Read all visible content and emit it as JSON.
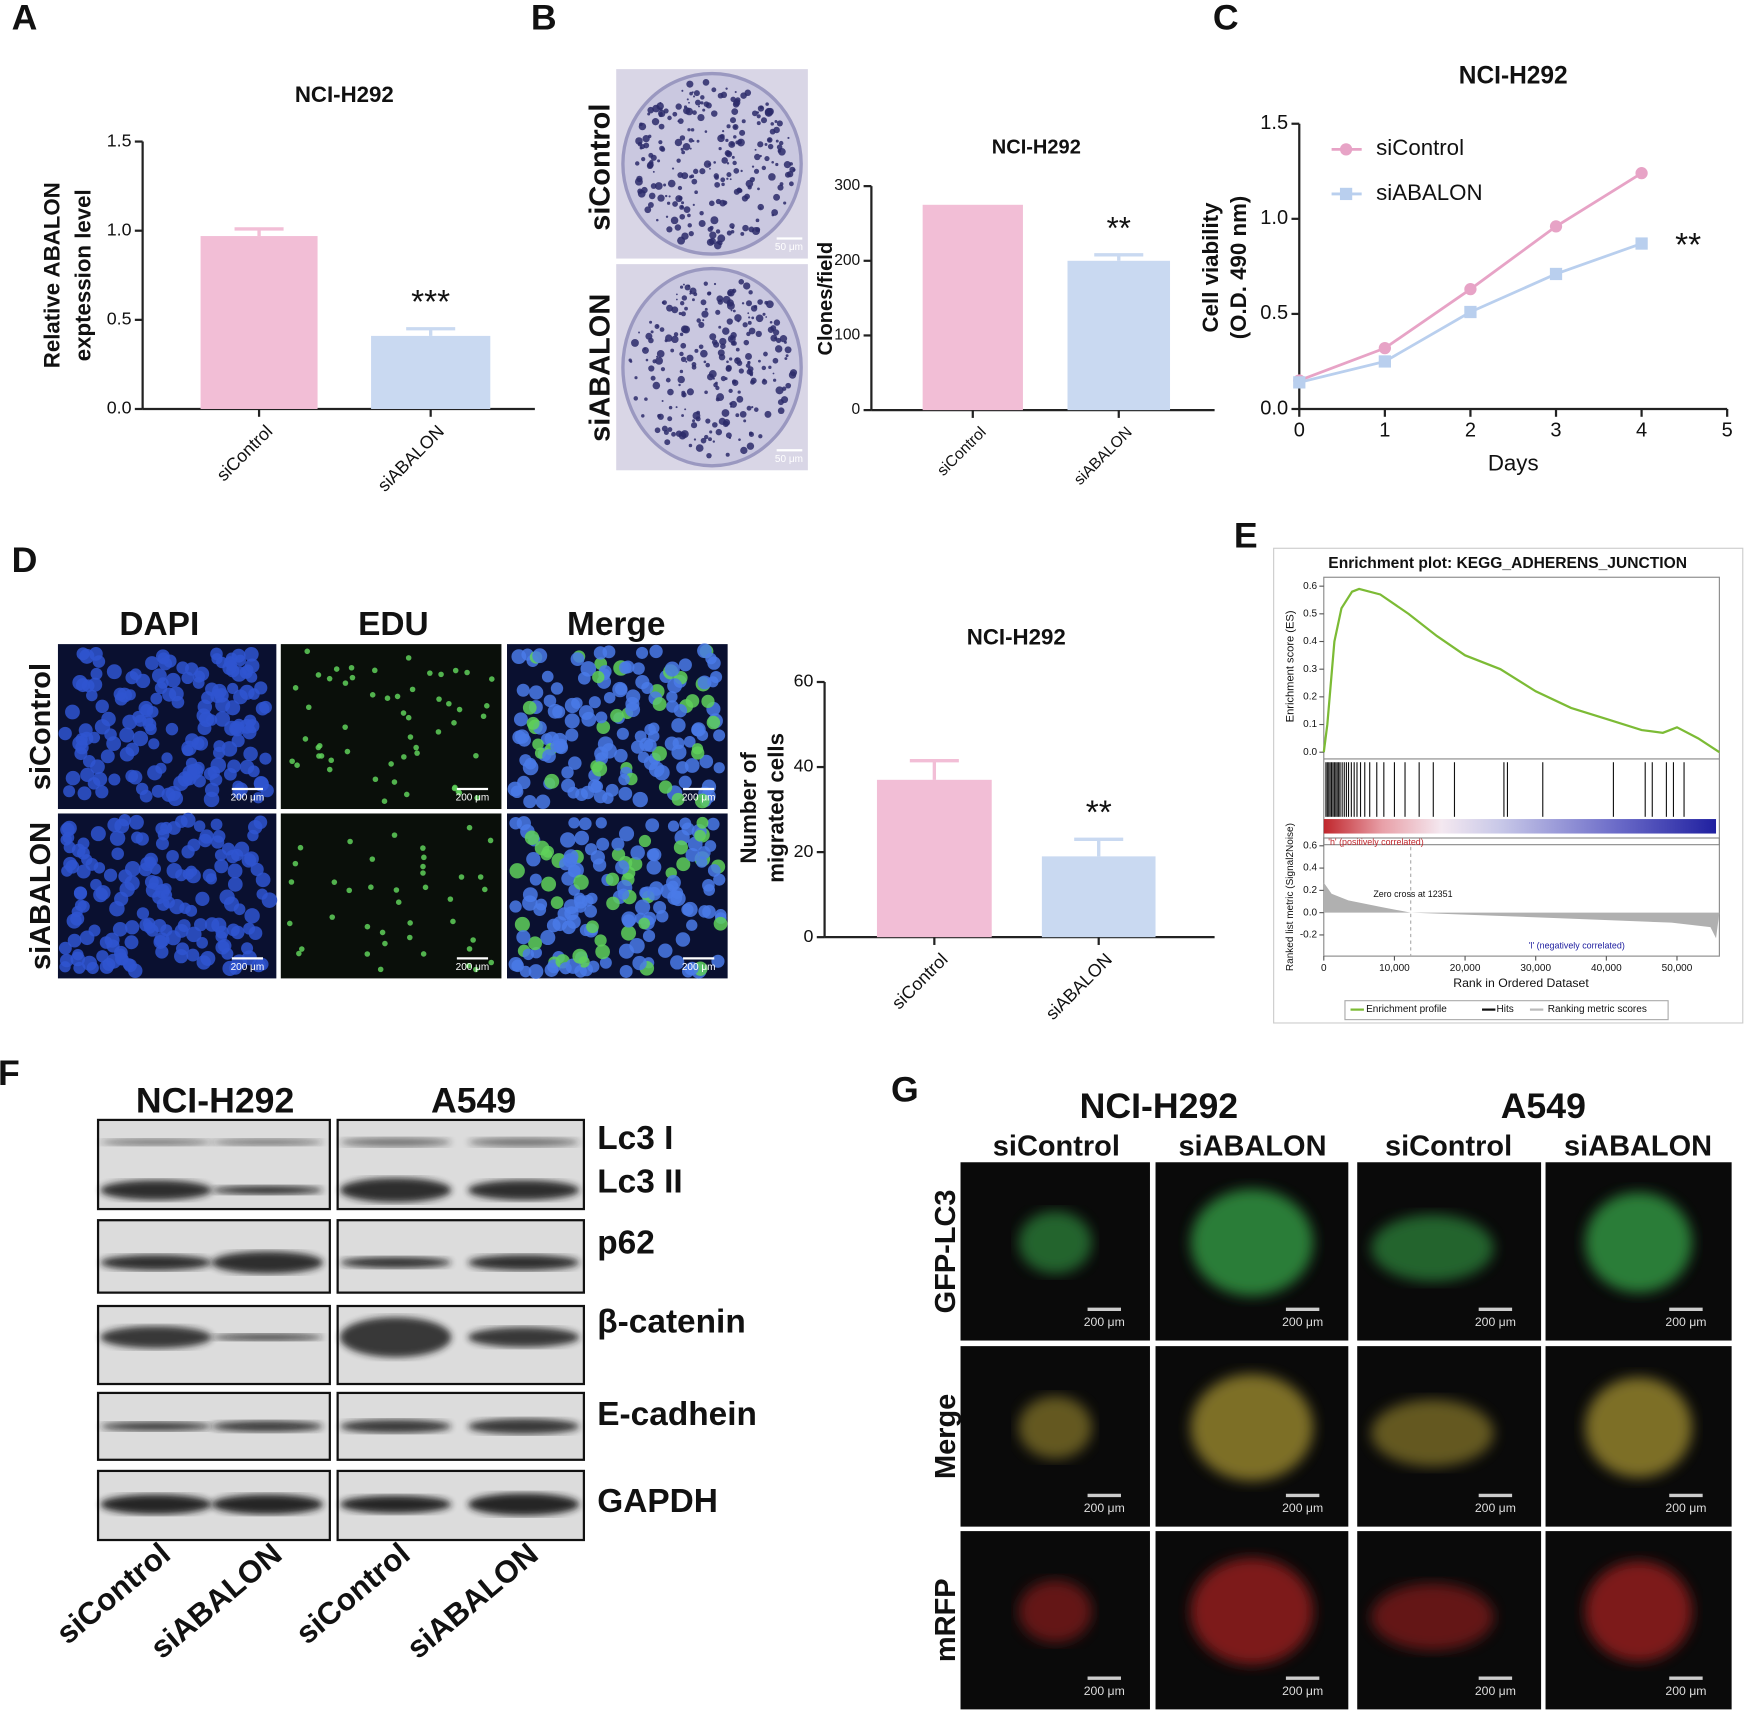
{
  "panel_labels": [
    "A",
    "B",
    "C",
    "D",
    "E",
    "F",
    "G"
  ],
  "chart_data": [
    {
      "type": "bar",
      "title": "NCI-H292",
      "y_label": [
        "Relative ABALON",
        "exptession level"
      ],
      "categories": [
        "siControl",
        "siABALON"
      ],
      "values": [
        0.97,
        0.41
      ],
      "errors": [
        0.04,
        0.04
      ],
      "colors": [
        "#f2bed6",
        "#c9d9f1"
      ],
      "annotation": "***",
      "ylim": [
        0,
        1.5
      ],
      "yticks": [
        {
          "value": 0,
          "label": "0.0"
        },
        0.5,
        {
          "value": 1,
          "label": "1.0"
        },
        1.5
      ]
    },
    {
      "type": "bar",
      "title": "NCI-H292",
      "y_label": [
        "Clones/field"
      ],
      "categories": [
        "siControl",
        "siABALON"
      ],
      "values": [
        275,
        200
      ],
      "errors": [
        null,
        8
      ],
      "colors": [
        "#f2bed6",
        "#c9d9f1"
      ],
      "annotation": "**",
      "ylim": [
        0,
        300
      ],
      "yticks": [
        0,
        100,
        200,
        300
      ]
    },
    {
      "type": "line",
      "title": "NCI-H292",
      "x_label": "Days",
      "y_label": [
        "Cell viability",
        "(O.D. 490 nm)"
      ],
      "x": [
        0,
        1,
        2,
        3,
        4
      ],
      "series": [
        {
          "name": "siControl",
          "color": "#e7a3c6",
          "marker": "circle",
          "values": [
            0.15,
            0.32,
            0.63,
            0.96,
            1.24
          ]
        },
        {
          "name": "siABALON",
          "color": "#b9cfee",
          "marker": "square",
          "values": [
            0.14,
            0.25,
            0.51,
            0.71,
            0.87
          ]
        }
      ],
      "annotation": "**",
      "xlim": [
        0,
        5
      ],
      "xticks": [
        0,
        1,
        2,
        3,
        4,
        5
      ],
      "ylim": [
        0,
        1.5
      ],
      "yticks": [
        {
          "value": 0,
          "label": "0.0"
        },
        0.5,
        {
          "value": 1,
          "label": "1.0"
        },
        1.5
      ]
    },
    {
      "type": "bar",
      "title": "NCI-H292",
      "y_label": [
        "Number of",
        "migrated cells"
      ],
      "categories": [
        "siControl",
        "siABALON"
      ],
      "values": [
        37,
        19
      ],
      "errors": [
        4.5,
        4
      ],
      "colors": [
        "#f2bed6",
        "#c9d9f1"
      ],
      "annotation": "**",
      "ylim": [
        0,
        60
      ],
      "yticks": [
        0,
        20,
        40,
        60
      ]
    },
    {
      "type": "gsea",
      "title": "Enrichment plot: KEGG_ADHERENS_JUNCTION",
      "y_label": "Enrichment score (ES)",
      "x_label": "Rank in Ordered Dataset",
      "color": "#7cbb35",
      "x": [
        0,
        500,
        1500,
        2500,
        4000,
        5000,
        8000,
        12000,
        16000,
        20000,
        25000,
        30000,
        35000,
        40000,
        45000,
        48000,
        50000,
        53000,
        56000
      ],
      "values": [
        0,
        0.1,
        0.4,
        0.52,
        0.58,
        0.59,
        0.57,
        0.5,
        0.42,
        0.35,
        0.3,
        0.22,
        0.16,
        0.12,
        0.08,
        0.07,
        0.09,
        0.05,
        0
      ],
      "hits": [
        300,
        500,
        700,
        900,
        1100,
        1300,
        1500,
        1700,
        1900,
        2100,
        2300,
        2600,
        2900,
        3200,
        3500,
        3900,
        4300,
        4700,
        5200,
        5800,
        6500,
        7500,
        8500,
        10000,
        11500,
        13500,
        15500,
        18500,
        25500,
        26000,
        31000,
        41000,
        45500,
        46500,
        48500,
        49500,
        51000
      ],
      "xlim": [
        0,
        56000
      ],
      "xticks": [
        0,
        {
          "value": 10000,
          "label": "10,000"
        },
        {
          "value": 20000,
          "label": "20,000"
        },
        {
          "value": 30000,
          "label": "30,000"
        },
        {
          "value": 40000,
          "label": "40,000"
        },
        {
          "value": 50000,
          "label": "50,000"
        }
      ],
      "ylim": [
        0,
        0.6
      ],
      "yticks": [
        {
          "value": 0,
          "label": "0.0"
        },
        0.1,
        0.2,
        0.3,
        0.4,
        0.5,
        0.6
      ],
      "ranked": {
        "y_label": "Ranked list metric (Signal2Noise)",
        "ylim": [
          -0.2,
          0.6
        ],
        "yticks": [
          0.6,
          0.4,
          0.2,
          {
            "value": 0,
            "label": "0.0"
          },
          -0.2
        ],
        "positive_label": "'h' (positively correlated)",
        "negative_label": "'l' (negatively correlated)",
        "zero_cross_label": "Zero cross at 12351"
      },
      "legend": [
        "Enrichment profile",
        "Hits",
        "Ranking metric scores"
      ]
    }
  ],
  "colony": {
    "rows": [
      "siControl",
      "siABALON"
    ],
    "scale_bar": "50 μm"
  },
  "edu": {
    "columns": [
      "DAPI",
      "EDU",
      "Merge"
    ],
    "rows": [
      "siControl",
      "siABALON"
    ],
    "scale_bar": "200 μm"
  },
  "western": {
    "cell_lines": [
      "NCI-H292",
      "A549"
    ],
    "proteins": [
      "Lc3 I",
      "Lc3 II",
      "p62",
      "β-catenin",
      "E-cadhein",
      "GAPDH"
    ],
    "lanes": [
      "siControl",
      "siABALON"
    ]
  },
  "gfp": {
    "cell_lines": [
      "NCI-H292",
      "A549"
    ],
    "conditions": [
      "siControl",
      "siABALON"
    ],
    "rows": [
      "GFP-LC3",
      "Merge",
      "mRFP"
    ],
    "scale_bar": "200 μm"
  }
}
